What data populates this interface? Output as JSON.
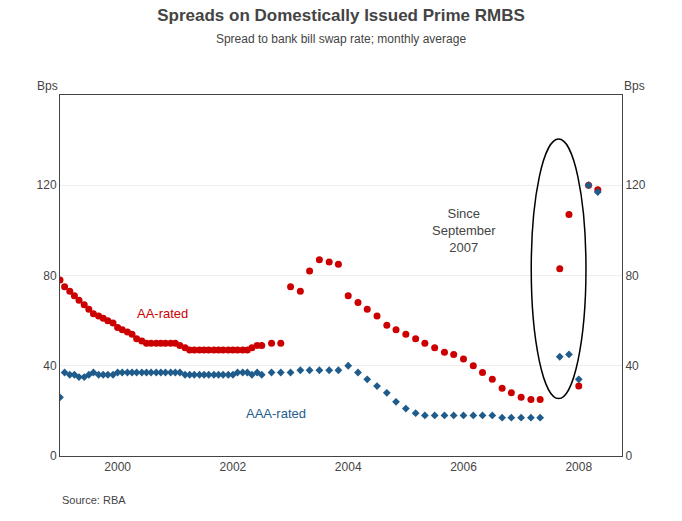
{
  "chart_data": {
    "type": "scatter",
    "title": "Spreads on Domestically Issued Prime RMBS",
    "subtitle": "Spread to bank bill swap rate; monthly average",
    "ylabel": "Bps",
    "y2label": "Bps",
    "source": "Source: RBA",
    "annotation": "Since\nSeptember\n2007",
    "xlim": [
      1999.0,
      2008.75
    ],
    "xticks": [
      2000,
      2002,
      2004,
      2006,
      2008
    ],
    "ylim": [
      0,
      160
    ],
    "yticks": [
      0,
      40,
      80,
      120
    ],
    "y2lim": [
      0,
      160
    ],
    "y2ticks": [
      0,
      40,
      80,
      120
    ],
    "grid": true,
    "x": [
      1999.0,
      1999.08,
      1999.17,
      1999.25,
      1999.33,
      1999.42,
      1999.5,
      1999.58,
      1999.67,
      1999.75,
      1999.83,
      1999.92,
      2000.0,
      2000.08,
      2000.17,
      2000.25,
      2000.33,
      2000.42,
      2000.5,
      2000.58,
      2000.67,
      2000.75,
      2000.83,
      2000.92,
      2001.0,
      2001.08,
      2001.17,
      2001.25,
      2001.33,
      2001.42,
      2001.5,
      2001.58,
      2001.67,
      2001.75,
      2001.83,
      2001.92,
      2002.0,
      2002.08,
      2002.17,
      2002.25,
      2002.33,
      2002.42,
      2002.5,
      2002.67,
      2002.83,
      2003.0,
      2003.17,
      2003.33,
      2003.5,
      2003.67,
      2003.83,
      2004.0,
      2004.17,
      2004.33,
      2004.5,
      2004.67,
      2004.83,
      2005.0,
      2005.17,
      2005.33,
      2005.5,
      2005.67,
      2005.83,
      2006.0,
      2006.17,
      2006.33,
      2006.5,
      2006.67,
      2006.83,
      2007.0,
      2007.17,
      2007.33,
      2007.67,
      2007.83,
      2008.0,
      2008.17,
      2008.33
    ],
    "series": [
      {
        "name": "AA-rated",
        "color": "#cc0000",
        "marker": "circle",
        "values": [
          78,
          75,
          73,
          71,
          69,
          67,
          65,
          63,
          62,
          61,
          60,
          59,
          57,
          56,
          55,
          54,
          52,
          51,
          50,
          50,
          50,
          50,
          50,
          50,
          50,
          49,
          48,
          47,
          47,
          47,
          47,
          47,
          47,
          47,
          47,
          47,
          47,
          47,
          47,
          47,
          48,
          49,
          49,
          50,
          50,
          75,
          73,
          82,
          87,
          86,
          85,
          71,
          68,
          65,
          62,
          58,
          56,
          54,
          52,
          50,
          48,
          46,
          45,
          43,
          40,
          37,
          34,
          30,
          28,
          26,
          25,
          25,
          83,
          107,
          31,
          120,
          118
        ]
      },
      {
        "name": "AAA-rated",
        "color": "#1f5c8b",
        "marker": "diamond",
        "values": [
          26,
          37,
          36,
          36,
          35,
          35,
          36,
          37,
          36,
          36,
          36,
          36,
          37,
          37,
          37,
          37,
          37,
          37,
          37,
          37,
          37,
          37,
          37,
          37,
          37,
          37,
          36,
          36,
          36,
          36,
          36,
          36,
          36,
          36,
          36,
          36,
          36,
          37,
          37,
          37,
          36,
          37,
          36,
          37,
          37,
          37,
          38,
          38,
          38,
          38,
          38,
          40,
          37,
          34,
          31,
          28,
          24,
          21,
          19,
          18,
          18,
          18,
          18,
          18,
          18,
          18,
          18,
          17,
          17,
          17,
          17,
          17,
          44,
          45,
          34,
          120,
          117
        ]
      }
    ]
  }
}
